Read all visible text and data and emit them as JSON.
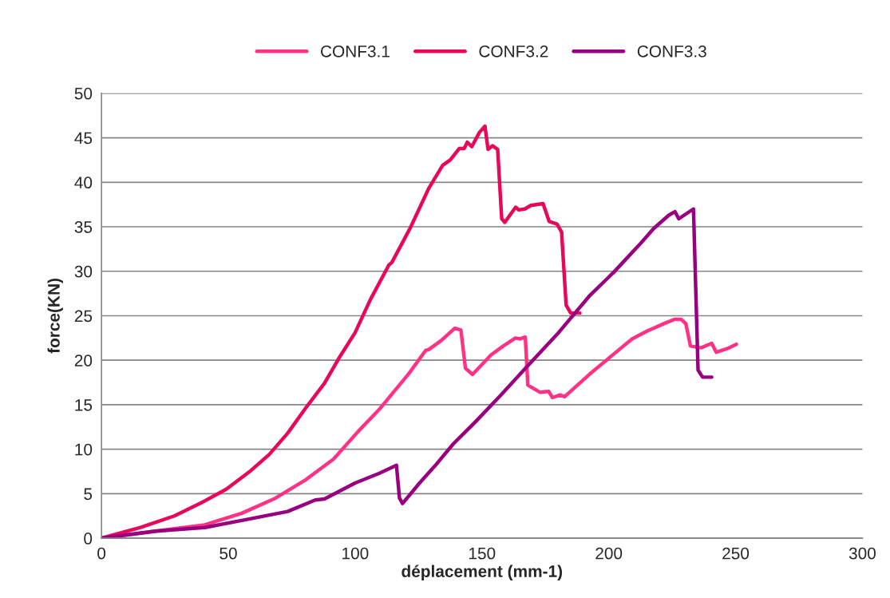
{
  "chart_data": {
    "type": "line",
    "xlabel": "déplacement (mm-1)",
    "ylabel": "force(KN)",
    "xlim": [
      0,
      300
    ],
    "xticks": [
      0,
      50,
      100,
      150,
      200,
      250,
      300
    ],
    "ylim": [
      0,
      50
    ],
    "yticks": [
      0,
      5,
      10,
      15,
      20,
      25,
      30,
      35,
      40,
      45,
      50
    ],
    "grid": "y",
    "legend": "top",
    "line_style": "solid",
    "series": [
      {
        "name": "CONF3.1",
        "color": "#ff3385",
        "x": [
          0,
          21.4,
          40.7,
          55.3,
          68.6,
          80.7,
          91.5,
          101.2,
          109.6,
          114.5,
          121.2,
          127.8,
          129,
          133.9,
          139.3,
          141.7,
          143.5,
          146.3,
          153.6,
          158.4,
          163.2,
          165.1,
          167.1,
          168.1,
          172.9,
          176.3,
          177.8,
          180.8,
          182.6,
          192.3,
          202,
          209.2,
          215.2,
          222.5,
          225.9,
          228.5,
          230.4,
          232.2,
          236.4,
          240.6,
          242.4,
          246.7,
          250.3
        ],
        "values": [
          0,
          0.8,
          1.5,
          2.8,
          4.5,
          6.6,
          8.9,
          12.0,
          14.5,
          16.2,
          18.5,
          21.1,
          21.2,
          22.2,
          23.6,
          23.4,
          19.1,
          18.4,
          20.6,
          21.6,
          22.5,
          22.4,
          22.6,
          17.2,
          16.4,
          16.5,
          15.8,
          16.1,
          15.9,
          18.4,
          20.7,
          22.4,
          23.3,
          24.2,
          24.6,
          24.6,
          24.1,
          21.6,
          21.4,
          21.9,
          20.9,
          21.3,
          21.8
        ]
      },
      {
        "name": "CONF3.2",
        "color": "#e6085a",
        "x": [
          0,
          15.4,
          28.7,
          39.5,
          49.2,
          58.9,
          66.1,
          73.4,
          80.7,
          87.9,
          94,
          100,
          106,
          113.3,
          114.5,
          121.8,
          129,
          134.5,
          137.5,
          141.1,
          143,
          144.2,
          146,
          149,
          151.2,
          152.4,
          154.2,
          156.2,
          157.8,
          159,
          163.3,
          164.5,
          166.9,
          169.3,
          174.1,
          176.5,
          179.6,
          181.4,
          183.2,
          185,
          188.6
        ],
        "values": [
          0,
          1.2,
          2.5,
          4.0,
          5.5,
          7.6,
          9.4,
          11.8,
          14.7,
          17.4,
          20.4,
          23.1,
          26.8,
          30.7,
          31.0,
          34.9,
          39.3,
          41.9,
          42.5,
          43.8,
          43.8,
          44.5,
          44.0,
          45.6,
          46.3,
          43.7,
          44.1,
          43.7,
          35.9,
          35.5,
          37.2,
          36.9,
          37.0,
          37.4,
          37.6,
          35.6,
          35.3,
          34.4,
          26.2,
          25.3,
          25.3
        ]
      },
      {
        "name": "CONF3.3",
        "color": "#990080",
        "x": [
          0,
          21.4,
          40.7,
          55.3,
          73.4,
          84.3,
          87.9,
          100,
          109.6,
          116.3,
          117.5,
          118.7,
          125.4,
          131.4,
          138.7,
          147.5,
          157.2,
          168.1,
          180.2,
          192.3,
          202,
          212.8,
          217.7,
          223.7,
          226.1,
          227.6,
          233.4,
          235.2,
          237,
          240.6
        ],
        "values": [
          0,
          0.8,
          1.2,
          2.0,
          3.0,
          4.3,
          4.4,
          6.2,
          7.3,
          8.2,
          4.5,
          3.9,
          6.2,
          8.1,
          10.6,
          13.1,
          16.0,
          19.4,
          23.1,
          27.2,
          29.9,
          33.2,
          34.8,
          36.3,
          36.7,
          35.9,
          37.0,
          18.9,
          18.1,
          18.1
        ]
      }
    ]
  }
}
